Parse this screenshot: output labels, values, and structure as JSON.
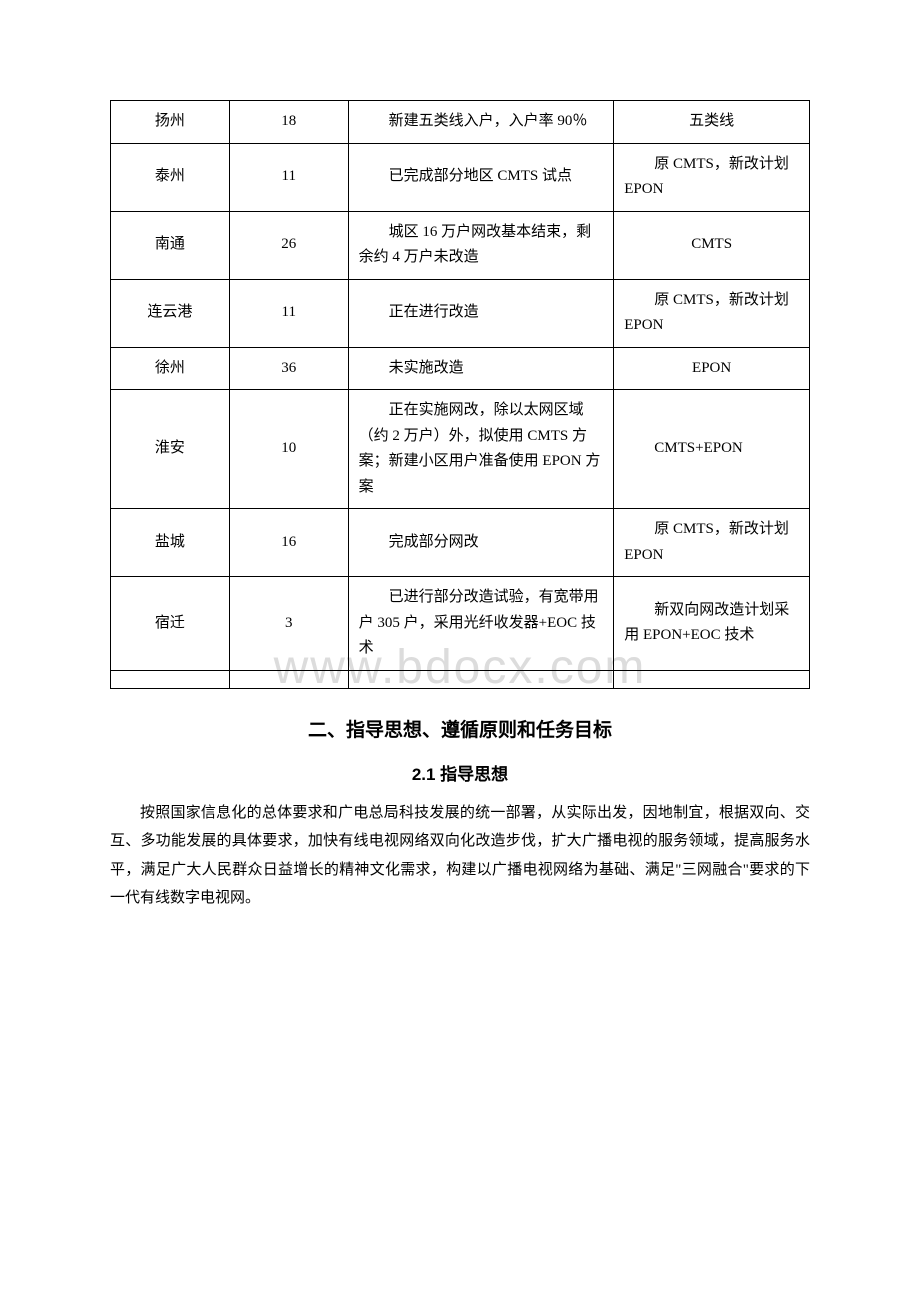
{
  "watermark": "www.bdocx.com",
  "table": {
    "columns": [
      "city",
      "count",
      "status",
      "tech"
    ],
    "col_widths_pct": [
      17,
      17,
      38,
      28
    ],
    "border_color": "#000000",
    "font_size": 15,
    "rows": [
      {
        "city": "扬州",
        "count": "18",
        "status": "新建五类线入户，入户率 90％",
        "tech": "五类线",
        "tech_align": "center"
      },
      {
        "city": "泰州",
        "count": "11",
        "status": "已完成部分地区 CMTS 试点",
        "tech": "原 CMTS，新改计划 EPON",
        "tech_align": "left"
      },
      {
        "city": "南通",
        "count": "26",
        "status": "城区 16 万户网改基本结束，剩余约 4 万户未改造",
        "tech": "CMTS",
        "tech_align": "center"
      },
      {
        "city": "连云港",
        "count": "11",
        "status": "正在进行改造",
        "tech": "原 CMTS，新改计划 EPON",
        "tech_align": "left"
      },
      {
        "city": "徐州",
        "count": "36",
        "status": "未实施改造",
        "tech": "EPON",
        "tech_align": "center"
      },
      {
        "city": "淮安",
        "count": "10",
        "status": "正在实施网改，除以太网区域（约 2 万户）外，拟使用 CMTS 方案；新建小区用户准备使用 EPON 方案",
        "tech": "CMTS+EPON",
        "tech_align": "left"
      },
      {
        "city": "盐城",
        "count": "16",
        "status": "完成部分网改",
        "tech": "原 CMTS，新改计划 EPON",
        "tech_align": "left"
      },
      {
        "city": "宿迁",
        "count": "3",
        "status": "已进行部分改造试验，有宽带用户 305 户，采用光纤收发器+EOC 技术",
        "tech": "新双向网改造计划采用 EPON+EOC 技术",
        "tech_align": "left"
      }
    ]
  },
  "section_heading": "二、指导思想、遵循原则和任务目标",
  "subsection_heading": "2.1 指导思想",
  "paragraph": "按照国家信息化的总体要求和广电总局科技发展的统一部署，从实际出发，因地制宜，根据双向、交互、多功能发展的具体要求，加快有线电视网络双向化改造步伐，扩大广播电视的服务领域，提高服务水平，满足广大人民群众日益增长的精神文化需求，构建以广播电视网络为基础、满足\"三网融合\"要求的下一代有线数字电视网。",
  "styles": {
    "background_color": "#ffffff",
    "text_color": "#000000",
    "watermark_color": "#dcdcdc",
    "heading_font": "SimHei",
    "body_font": "SimSun",
    "heading2_fontsize": 19,
    "heading3_fontsize": 17,
    "para_fontsize": 15
  }
}
